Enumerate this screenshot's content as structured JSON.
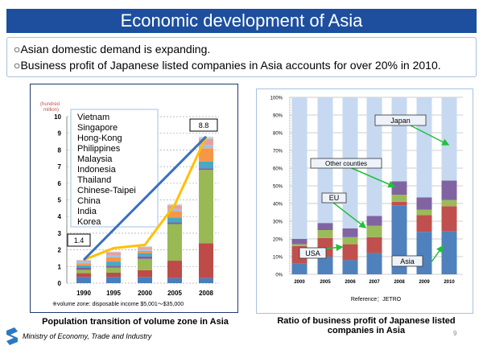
{
  "title": "Economic development of Asia",
  "bullets": [
    "○Asian domestic demand is expanding.",
    "○Business profit of Japanese listed companies in Asia accounts for over 20% in 2010."
  ],
  "chart_data": [
    {
      "type": "bar",
      "stacked": true,
      "unit_label": "(hundred million)",
      "ylim": [
        0,
        10
      ],
      "yticks": [
        0,
        1,
        2,
        3,
        4,
        5,
        6,
        7,
        8,
        9,
        10
      ],
      "grid": true,
      "categories": [
        "1990",
        "1995",
        "2000",
        "2005",
        "2008"
      ],
      "legend": [
        "Vietnam",
        "Singapore",
        "Hong-Kong",
        "Philippines",
        "Malaysia",
        "Indonesia",
        "Thailand",
        "Chinese-Taipei",
        "China",
        "India",
        "Korea"
      ],
      "series": [
        {
          "name": "Korea",
          "color": "#4a7ebb",
          "values": [
            0.38,
            0.38,
            0.38,
            0.3,
            0.3
          ]
        },
        {
          "name": "India",
          "color": "#be4b48",
          "values": [
            0.22,
            0.25,
            0.4,
            1.05,
            2.1
          ]
        },
        {
          "name": "China",
          "color": "#98b954",
          "values": [
            0.2,
            0.3,
            0.68,
            2.2,
            4.4
          ]
        },
        {
          "name": "Chinese-Taipei",
          "color": "#7d60a0",
          "values": [
            0.15,
            0.12,
            0.15,
            0.1,
            0.1
          ]
        },
        {
          "name": "Thailand",
          "color": "#46aac5",
          "values": [
            0.12,
            0.25,
            0.18,
            0.3,
            0.4
          ]
        },
        {
          "name": "Indonesia",
          "color": "#f79646",
          "values": [
            0.12,
            0.25,
            0.15,
            0.35,
            0.8
          ]
        },
        {
          "name": "Malaysia",
          "color": "#9dc3e6",
          "values": [
            0.08,
            0.1,
            0.1,
            0.15,
            0.2
          ]
        },
        {
          "name": "Philippines",
          "color": "#e6a0a0",
          "values": [
            0.08,
            0.2,
            0.12,
            0.2,
            0.35
          ]
        },
        {
          "name": "Hong-Kong",
          "color": "#c9b5dd",
          "values": [
            0.02,
            0.03,
            0.03,
            0.05,
            0.05
          ]
        },
        {
          "name": "Singapore",
          "color": "#c5dda0",
          "values": [
            0.01,
            0.02,
            0.02,
            0.03,
            0.03
          ]
        },
        {
          "name": "Vietnam",
          "color": "#b9d9ea",
          "values": [
            0.02,
            0,
            0.01,
            0.02,
            0.07
          ]
        }
      ],
      "trend_line": {
        "color": "#ffc000",
        "values": [
          1.4,
          2.1,
          2.3,
          4.7,
          8.8
        ]
      },
      "growth_line": {
        "color": "#3a6fc0",
        "from": 1.4,
        "to": 8.8
      },
      "annotations": [
        "1.4",
        "8.8"
      ],
      "note": "※volume zone: disposable income $5,001～$35,000",
      "caption": "Population transition of volume zone in Asia"
    },
    {
      "type": "bar",
      "stacked": true,
      "ylim": [
        0,
        100
      ],
      "yticks": [
        "0%",
        "10%",
        "20%",
        "30%",
        "40%",
        "50%",
        "60%",
        "70%",
        "80%",
        "90%",
        "100%"
      ],
      "grid": true,
      "categories": [
        "2000",
        "2005",
        "2006",
        "2007",
        "2008",
        "2009",
        "2010"
      ],
      "series": [
        {
          "name": "Asia",
          "color": "#4f81bd",
          "values": [
            6,
            10,
            8,
            12,
            39,
            24,
            24.5
          ]
        },
        {
          "name": "USA",
          "color": "#c0504d",
          "values": [
            10,
            10.5,
            9,
            9,
            2,
            9.5,
            14
          ]
        },
        {
          "name": "EU",
          "color": "#9bbb59",
          "values": [
            1,
            4.5,
            4,
            6.5,
            4,
            3,
            3.5
          ]
        },
        {
          "name": "Other counties",
          "color": "#8064a2",
          "values": [
            3,
            4,
            5,
            5.5,
            7.5,
            7,
            11
          ]
        },
        {
          "name": "Japan",
          "color": "#c6d9f1",
          "values": [
            80,
            71,
            74,
            67,
            47.5,
            56.5,
            47
          ]
        }
      ],
      "reference": "Reference：JETRO",
      "caption": "Ratio of business profit of Japanese listed companies in Asia"
    }
  ],
  "footer": {
    "ministry": "Ministry of Economy, Trade and Industry",
    "page": "9"
  }
}
